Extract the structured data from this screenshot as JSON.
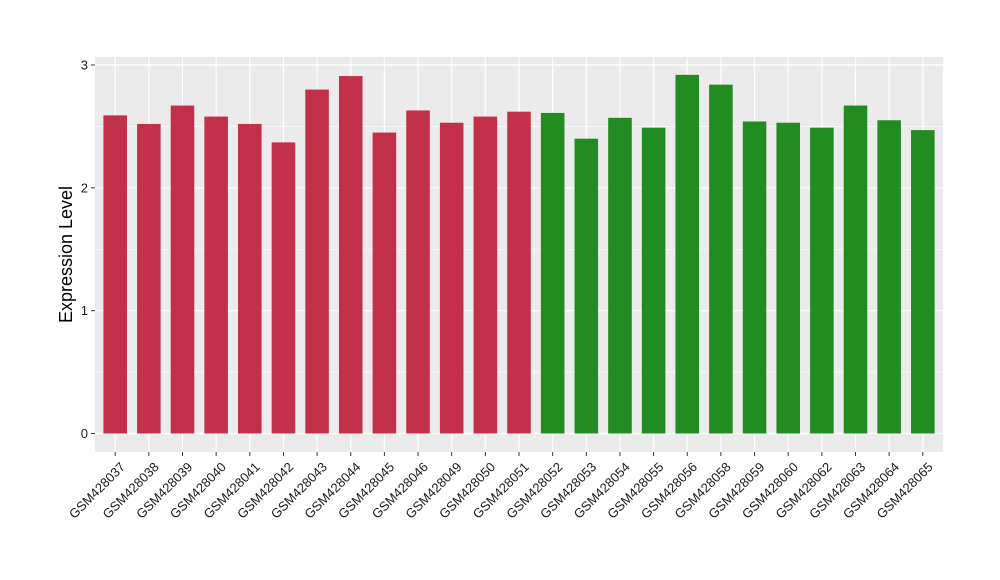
{
  "chart_data": {
    "type": "bar",
    "title": "",
    "xlabel": "",
    "ylabel": "Expression Level",
    "ylim": [
      0,
      3.05
    ],
    "yticks": [
      0,
      1,
      2,
      3
    ],
    "grid": true,
    "legend": "none",
    "categories": [
      "GSM428037",
      "GSM428038",
      "GSM428039",
      "GSM428040",
      "GSM428041",
      "GSM428042",
      "GSM428043",
      "GSM428044",
      "GSM428045",
      "GSM428046",
      "GSM428049",
      "GSM428050",
      "GSM428051",
      "GSM428052",
      "GSM428053",
      "GSM428054",
      "GSM428055",
      "GSM428056",
      "GSM428058",
      "GSM428059",
      "GSM428060",
      "GSM428062",
      "GSM428063",
      "GSM428064",
      "GSM428065"
    ],
    "values": [
      2.59,
      2.52,
      2.67,
      2.58,
      2.52,
      2.37,
      2.8,
      2.91,
      2.45,
      2.63,
      2.53,
      2.58,
      2.62,
      2.61,
      2.4,
      2.57,
      2.49,
      2.92,
      2.84,
      2.54,
      2.53,
      2.49,
      2.67,
      2.55,
      2.47
    ],
    "bar_colors": [
      "#c3304a",
      "#c3304a",
      "#c3304a",
      "#c3304a",
      "#c3304a",
      "#c3304a",
      "#c3304a",
      "#c3304a",
      "#c3304a",
      "#c3304a",
      "#c3304a",
      "#c3304a",
      "#c3304a",
      "#228b22",
      "#228b22",
      "#228b22",
      "#228b22",
      "#228b22",
      "#228b22",
      "#228b22",
      "#228b22",
      "#228b22",
      "#228b22",
      "#228b22",
      "#228b22"
    ]
  },
  "colors": {
    "panel_background": "#ebebeb",
    "gridline": "#ffffff",
    "group_1": "#c3304a",
    "group_2": "#228b22"
  }
}
